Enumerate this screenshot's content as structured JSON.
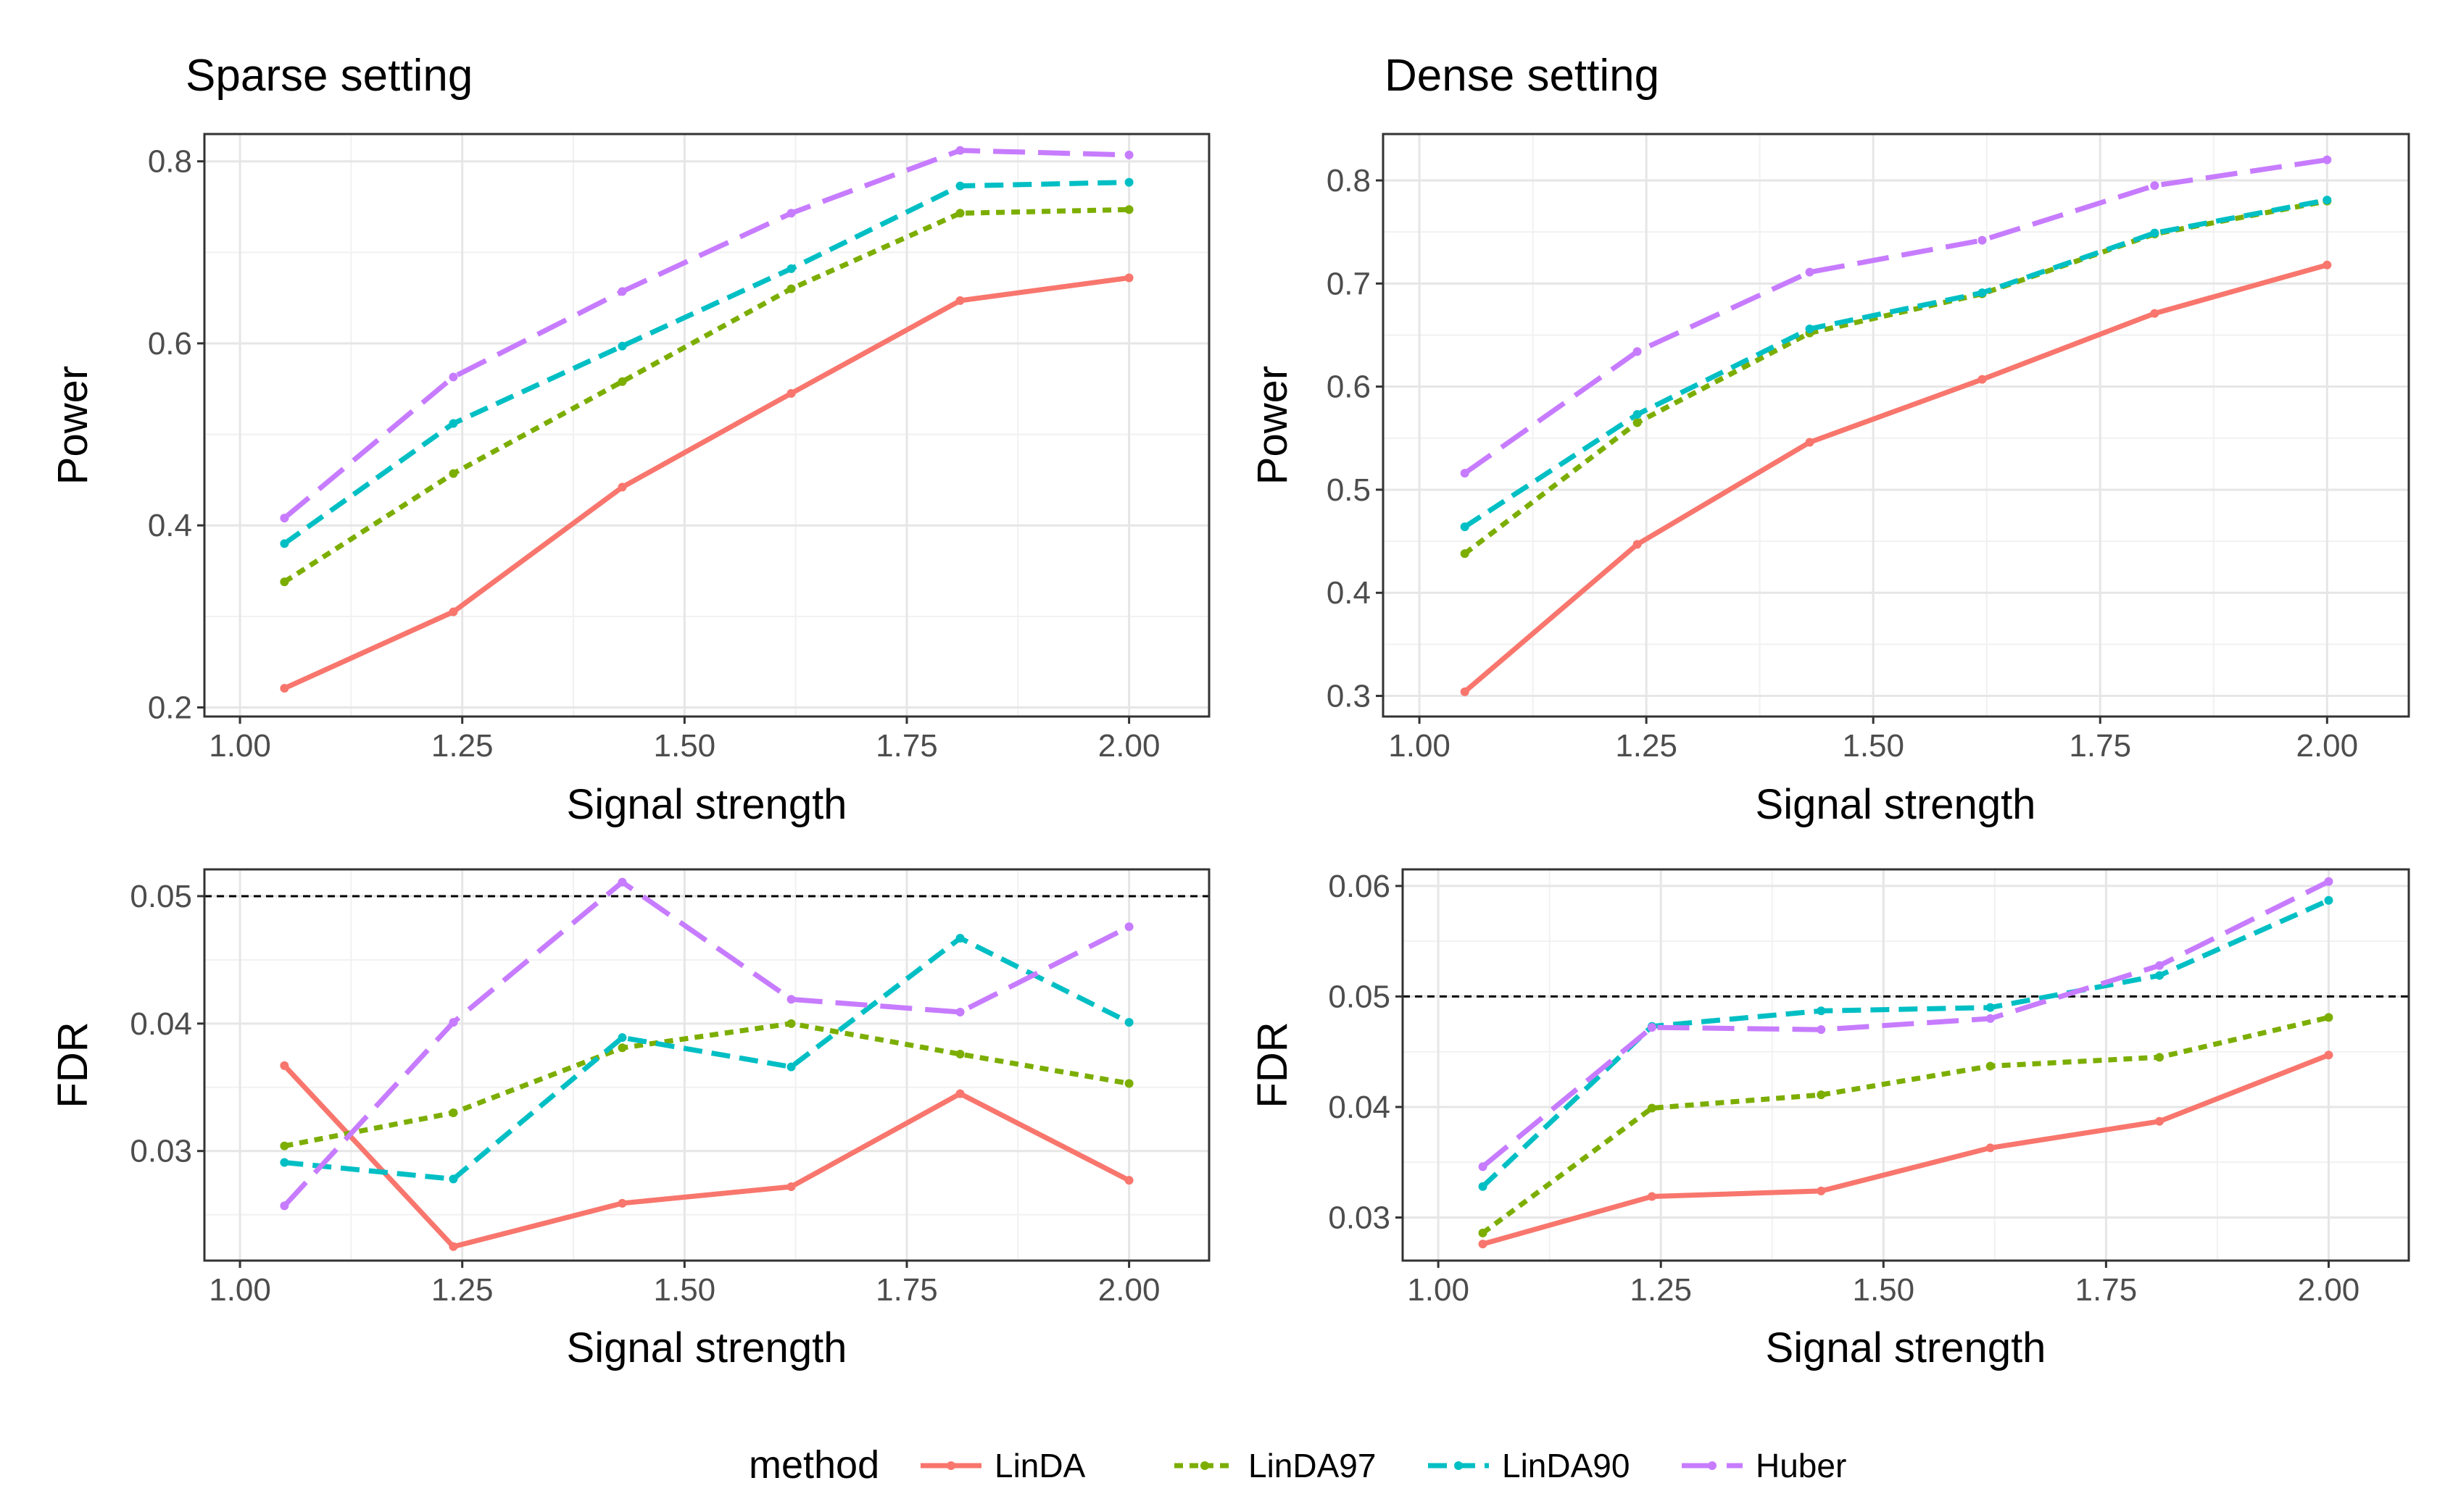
{
  "legend": {
    "title": "method",
    "items": [
      {
        "name": "LinDA",
        "color": "#F8766D",
        "dash": "solid"
      },
      {
        "name": "LinDA97",
        "color": "#7CAE00",
        "dash": "dotted"
      },
      {
        "name": "LinDA90",
        "color": "#00BFC4",
        "dash": "dashed"
      },
      {
        "name": "Huber",
        "color": "#C77CFF",
        "dash": "longdash"
      }
    ]
  },
  "chart_data": [
    {
      "type": "line",
      "id": "sparse-power",
      "title": "Sparse setting",
      "xlabel": "Signal strength",
      "ylabel": "Power",
      "x": [
        1.05,
        1.24,
        1.43,
        1.62,
        1.81,
        2.0
      ],
      "xlim": [
        0.96,
        2.09
      ],
      "ylim": [
        0.19,
        0.83
      ],
      "xticks": [
        1.0,
        1.25,
        1.5,
        1.75,
        2.0
      ],
      "xtick_labels": [
        "1.00",
        "1.25",
        "1.50",
        "1.75",
        "2.00"
      ],
      "yticks": [
        0.2,
        0.4,
        0.6,
        0.8
      ],
      "ytick_labels": [
        "0.2",
        "0.4",
        "0.6",
        "0.8"
      ],
      "series": [
        {
          "name": "LinDA",
          "values": [
            0.221,
            0.305,
            0.442,
            0.545,
            0.647,
            0.672
          ]
        },
        {
          "name": "LinDA97",
          "values": [
            0.338,
            0.457,
            0.558,
            0.66,
            0.743,
            0.747
          ]
        },
        {
          "name": "LinDA90",
          "values": [
            0.38,
            0.512,
            0.597,
            0.682,
            0.773,
            0.777
          ]
        },
        {
          "name": "Huber",
          "values": [
            0.408,
            0.563,
            0.657,
            0.743,
            0.812,
            0.807
          ]
        }
      ]
    },
    {
      "type": "line",
      "id": "dense-power",
      "title": "Dense setting",
      "xlabel": "Signal strength",
      "ylabel": "Power",
      "x": [
        1.05,
        1.24,
        1.43,
        1.62,
        1.81,
        2.0
      ],
      "xlim": [
        0.96,
        2.09
      ],
      "ylim": [
        0.28,
        0.845
      ],
      "xticks": [
        1.0,
        1.25,
        1.5,
        1.75,
        2.0
      ],
      "xtick_labels": [
        "1.00",
        "1.25",
        "1.50",
        "1.75",
        "2.00"
      ],
      "yticks": [
        0.3,
        0.4,
        0.5,
        0.6,
        0.7,
        0.8
      ],
      "ytick_labels": [
        "0.3",
        "0.4",
        "0.5",
        "0.6",
        "0.7",
        "0.8"
      ],
      "series": [
        {
          "name": "LinDA",
          "values": [
            0.304,
            0.447,
            0.546,
            0.607,
            0.671,
            0.718
          ]
        },
        {
          "name": "LinDA97",
          "values": [
            0.438,
            0.565,
            0.652,
            0.69,
            0.748,
            0.78
          ]
        },
        {
          "name": "LinDA90",
          "values": [
            0.464,
            0.573,
            0.656,
            0.691,
            0.749,
            0.781
          ]
        },
        {
          "name": "Huber",
          "values": [
            0.516,
            0.634,
            0.711,
            0.742,
            0.795,
            0.82
          ]
        }
      ]
    },
    {
      "type": "line",
      "id": "sparse-fdr",
      "title": "",
      "xlabel": "Signal strength",
      "ylabel": "FDR",
      "x": [
        1.05,
        1.24,
        1.43,
        1.62,
        1.81,
        2.0
      ],
      "xlim": [
        0.96,
        2.09
      ],
      "ylim": [
        0.0214,
        0.0521
      ],
      "xticks": [
        1.0,
        1.25,
        1.5,
        1.75,
        2.0
      ],
      "xtick_labels": [
        "1.00",
        "1.25",
        "1.50",
        "1.75",
        "2.00"
      ],
      "yticks": [
        0.03,
        0.04,
        0.05
      ],
      "ytick_labels": [
        "0.03",
        "0.04",
        "0.05"
      ],
      "reference_line": 0.05,
      "series": [
        {
          "name": "LinDA",
          "values": [
            0.0367,
            0.0225,
            0.0259,
            0.0272,
            0.0345,
            0.0277
          ]
        },
        {
          "name": "LinDA97",
          "values": [
            0.0304,
            0.033,
            0.0381,
            0.04,
            0.0376,
            0.0353
          ]
        },
        {
          "name": "LinDA90",
          "values": [
            0.0291,
            0.0278,
            0.0389,
            0.0366,
            0.0467,
            0.0401
          ]
        },
        {
          "name": "Huber",
          "values": [
            0.0257,
            0.0401,
            0.0511,
            0.0419,
            0.0409,
            0.0476
          ]
        }
      ]
    },
    {
      "type": "line",
      "id": "dense-fdr",
      "title": "",
      "xlabel": "Signal strength",
      "ylabel": "FDR",
      "x": [
        1.05,
        1.24,
        1.43,
        1.62,
        1.81,
        2.0
      ],
      "xlim": [
        0.96,
        2.09
      ],
      "ylim": [
        0.0261,
        0.0615
      ],
      "xticks": [
        1.0,
        1.25,
        1.5,
        1.75,
        2.0
      ],
      "xtick_labels": [
        "1.00",
        "1.25",
        "1.50",
        "1.75",
        "2.00"
      ],
      "yticks": [
        0.03,
        0.04,
        0.05,
        0.06
      ],
      "ytick_labels": [
        "0.03",
        "0.04",
        "0.05",
        "0.06"
      ],
      "reference_line": 0.05,
      "series": [
        {
          "name": "LinDA",
          "values": [
            0.0276,
            0.0319,
            0.0324,
            0.0363,
            0.0387,
            0.0447
          ]
        },
        {
          "name": "LinDA97",
          "values": [
            0.0286,
            0.0399,
            0.0411,
            0.0437,
            0.0445,
            0.0481
          ]
        },
        {
          "name": "LinDA90",
          "values": [
            0.0328,
            0.0473,
            0.0487,
            0.049,
            0.0519,
            0.0587
          ]
        },
        {
          "name": "Huber",
          "values": [
            0.0346,
            0.0472,
            0.047,
            0.048,
            0.0528,
            0.0604
          ]
        }
      ]
    }
  ]
}
